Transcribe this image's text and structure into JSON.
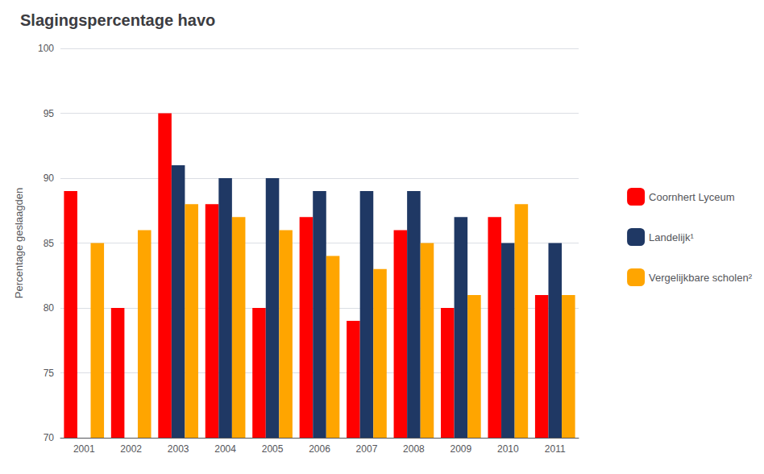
{
  "chart_data": {
    "type": "bar",
    "title": "Slagingspercentage havo",
    "y_label": "Percentage geslaagden",
    "categories": [
      "2001",
      "2002",
      "2003",
      "2004",
      "2005",
      "2006",
      "2007",
      "2008",
      "2009",
      "2010",
      "2011"
    ],
    "series": [
      {
        "name": "Coornhert Lyceum",
        "color": "#FF0000",
        "values": [
          89,
          80,
          95,
          88,
          80,
          87,
          79,
          86,
          80,
          87,
          81
        ]
      },
      {
        "name": "Landelijk¹",
        "color": "#1F3864",
        "values": [
          null,
          null,
          91,
          90,
          90,
          89,
          89,
          89,
          87,
          85,
          85
        ]
      },
      {
        "name": "Vergelijkbare scholen²",
        "color": "#FFA500",
        "values": [
          85,
          86,
          88,
          87,
          86,
          84,
          83,
          85,
          81,
          88,
          81
        ]
      }
    ],
    "ylim": [
      70,
      100
    ],
    "yticks": [
      70,
      75,
      80,
      85,
      90,
      95,
      100
    ],
    "grid": true,
    "legend": "right"
  }
}
